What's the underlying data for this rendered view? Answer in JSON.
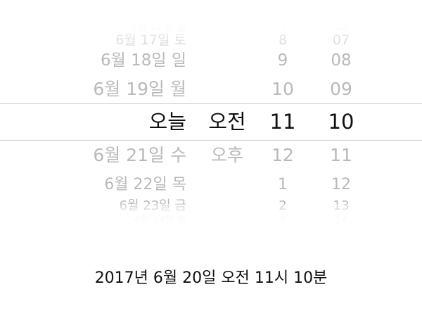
{
  "picker": {
    "date_column": {
      "items": [
        "6월 16일 금",
        "6월 17일 토",
        "6월 18일 일",
        "6월 19일 월",
        "오늘",
        "6월 21일 수",
        "6월 22일 목",
        "6월 23일 금",
        "6월 24일 토"
      ],
      "selected_index": 4
    },
    "ampm_column": {
      "items": [
        "",
        "",
        "",
        "",
        "오전",
        "오후",
        "",
        "",
        ""
      ],
      "selected_index": 4
    },
    "hour_column": {
      "items": [
        "7",
        "8",
        "9",
        "10",
        "11",
        "12",
        "1",
        "2",
        "3"
      ],
      "selected_index": 4
    },
    "minute_column": {
      "items": [
        "06",
        "07",
        "08",
        "09",
        "10",
        "11",
        "12",
        "13",
        "14"
      ],
      "selected_index": 4
    }
  },
  "summary": {
    "text": "2017년 6월 20일 오전 11시 10분"
  }
}
